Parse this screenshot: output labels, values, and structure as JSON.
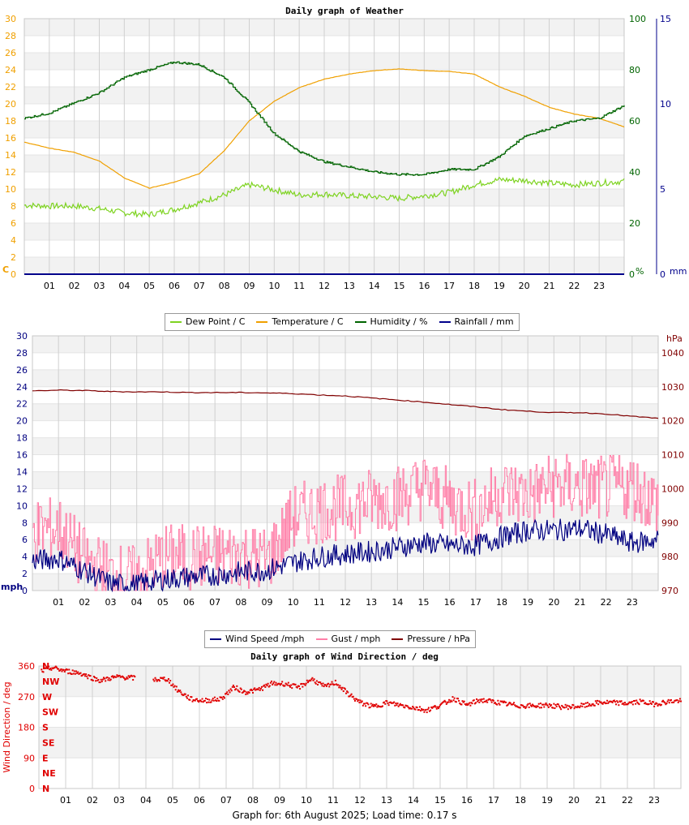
{
  "footer": {
    "text": "Graph for: 6th August 2025; Load time: 0.17 s"
  },
  "hour_labels": [
    "01",
    "02",
    "03",
    "04",
    "05",
    "06",
    "07",
    "08",
    "09",
    "10",
    "11",
    "12",
    "13",
    "14",
    "15",
    "16",
    "17",
    "18",
    "19",
    "20",
    "21",
    "22",
    "23"
  ],
  "colors": {
    "dewpoint": "#7ed321",
    "temperature": "#f0a000",
    "humidity": "#006400",
    "rainfall": "#00008b",
    "wind": "#000080",
    "gust": "#ff7fa8",
    "pressure": "#800000",
    "winddir": "#e00000",
    "grid_band": "#f2f2f2",
    "grid_line": "#d0d0d0"
  },
  "chart_data": [
    {
      "type": "line",
      "title": "Daily graph of Weather",
      "x_range": [
        0,
        24
      ],
      "y_axes": {
        "left": {
          "unit": "C",
          "range": [
            0,
            30
          ],
          "ticks": [
            "0",
            "2",
            "4",
            "6",
            "8",
            "10",
            "12",
            "14",
            "16",
            "18",
            "20",
            "22",
            "24",
            "26",
            "28",
            "30"
          ]
        },
        "right1": {
          "unit": "%",
          "range": [
            0,
            100
          ],
          "ticks": [
            "0",
            "20",
            "40",
            "60",
            "80",
            "100"
          ]
        },
        "right2": {
          "unit": "mm",
          "range": [
            0,
            15
          ],
          "ticks": [
            "0",
            "5",
            "10",
            "15"
          ]
        }
      },
      "series": [
        {
          "name": "Dew Point / C",
          "axis": "left",
          "x": [
            0,
            1,
            2,
            3,
            4,
            5,
            6,
            7,
            8,
            9,
            10,
            11,
            12,
            13,
            14,
            15,
            16,
            17,
            18,
            19,
            20,
            21,
            22,
            23,
            24
          ],
          "values": [
            8.1,
            8.0,
            8.0,
            7.7,
            7.2,
            7.0,
            7.6,
            8.4,
            9.3,
            10.5,
            9.9,
            9.3,
            9.4,
            9.2,
            9.1,
            8.9,
            9.2,
            9.6,
            10.5,
            11.1,
            11.0,
            10.7,
            10.5,
            10.7,
            10.9
          ]
        },
        {
          "name": "Temperature / C",
          "axis": "left",
          "x": [
            0,
            1,
            2,
            3,
            4,
            5,
            6,
            7,
            8,
            9,
            10,
            11,
            12,
            13,
            14,
            15,
            16,
            17,
            18,
            19,
            20,
            21,
            22,
            23,
            24
          ],
          "values": [
            15.5,
            14.8,
            14.3,
            13.3,
            11.3,
            10.1,
            10.8,
            11.8,
            14.5,
            18.0,
            20.3,
            21.9,
            22.9,
            23.5,
            23.9,
            24.1,
            23.9,
            23.8,
            23.5,
            22.0,
            20.9,
            19.6,
            18.8,
            18.3,
            17.3
          ]
        },
        {
          "name": "Humidity / %",
          "axis": "right1",
          "x": [
            0,
            1,
            2,
            3,
            4,
            5,
            6,
            7,
            8,
            9,
            10,
            11,
            12,
            13,
            14,
            15,
            16,
            17,
            18,
            19,
            20,
            21,
            22,
            23,
            24
          ],
          "values": [
            61,
            63,
            67,
            71,
            77,
            80,
            83,
            82,
            77,
            67,
            55,
            48,
            44,
            42,
            40,
            39,
            39,
            41,
            41,
            46,
            54,
            57,
            60,
            61,
            66
          ]
        },
        {
          "name": "Rainfall / mm",
          "axis": "right2",
          "x": [
            0,
            24
          ],
          "values": [
            0,
            0
          ]
        }
      ]
    },
    {
      "type": "line",
      "title": "",
      "x_range": [
        0,
        24
      ],
      "y_axes": {
        "left": {
          "unit": "mph",
          "range": [
            0,
            30
          ],
          "ticks": [
            "0",
            "2",
            "4",
            "6",
            "8",
            "10",
            "12",
            "14",
            "16",
            "18",
            "20",
            "22",
            "24",
            "26",
            "28",
            "30"
          ]
        },
        "right": {
          "unit": "hPa",
          "range": [
            970,
            1045
          ],
          "ticks": [
            "970",
            "980",
            "990",
            "1000",
            "1010",
            "1020",
            "1030",
            "1040"
          ]
        }
      },
      "series": [
        {
          "name": "Wind Speed /mph",
          "axis": "left",
          "x": [
            0,
            1,
            2,
            3,
            4,
            5,
            6,
            7,
            8,
            9,
            10,
            11,
            12,
            13,
            14,
            15,
            16,
            17,
            18,
            19,
            20,
            21,
            22,
            23,
            24
          ],
          "values": [
            3.5,
            3.8,
            2.3,
            0.8,
            0.7,
            1.3,
            1.6,
            1.8,
            2.2,
            2.4,
            3.3,
            4.0,
            4.3,
            4.6,
            5.1,
            5.6,
            5.3,
            5.3,
            6.3,
            7.1,
            7.1,
            7.3,
            6.6,
            5.6,
            6.0
          ]
        },
        {
          "name": "Gust / mph",
          "axis": "left",
          "x": [
            0,
            1,
            2,
            3,
            4,
            5,
            6,
            7,
            8,
            9,
            10,
            11,
            12,
            13,
            14,
            15,
            16,
            17,
            18,
            19,
            20,
            21,
            22,
            23,
            24
          ],
          "values": [
            7.0,
            7.2,
            3.5,
            1.8,
            1.4,
            4.0,
            3.9,
            4.0,
            4.3,
            3.6,
            8.6,
            9.5,
            9.8,
            10.6,
            11.0,
            12.3,
            10.4,
            9.3,
            11.8,
            11.2,
            12.4,
            12.1,
            12.0,
            12.3,
            10.2
          ]
        },
        {
          "name": "Pressure / hPa",
          "axis": "right",
          "x": [
            0,
            1,
            2,
            3,
            4,
            5,
            6,
            7,
            8,
            9,
            10,
            11,
            12,
            13,
            14,
            15,
            16,
            17,
            18,
            19,
            20,
            21,
            22,
            23,
            24
          ],
          "values": [
            1028.8,
            1029.0,
            1028.9,
            1028.6,
            1028.5,
            1028.5,
            1028.3,
            1028.3,
            1028.3,
            1028.2,
            1028.0,
            1027.6,
            1027.3,
            1026.7,
            1026.1,
            1025.5,
            1024.8,
            1024.1,
            1023.3,
            1022.8,
            1022.4,
            1022.4,
            1022.0,
            1021.3,
            1020.7
          ]
        }
      ]
    },
    {
      "type": "scatter",
      "title": "Daily graph of Wind Direction / deg",
      "ylabel": "Wind Direction / deg",
      "x_range": [
        0,
        24
      ],
      "ylim": [
        0,
        360
      ],
      "y_ticks": [
        "0",
        "90",
        "180",
        "270",
        "360"
      ],
      "compass_labels": [
        "N",
        "NE",
        "E",
        "SE",
        "S",
        "SW",
        "W",
        "NW",
        "N"
      ],
      "series": [
        {
          "name": "Wind Direction / deg",
          "x": [
            0.1,
            0.5,
            1,
            1.5,
            2,
            2.3,
            2.7,
            3,
            3.5,
            4.3,
            4.8,
            5.2,
            5.7,
            6.2,
            6.8,
            7.3,
            7.7,
            8.2,
            8.7,
            9.2,
            9.7,
            10.2,
            10.7,
            11.1,
            11.5,
            12,
            12.5,
            13,
            13.5,
            14,
            14.5,
            15,
            15.5,
            16,
            16.5,
            17,
            17.5,
            18,
            18.5,
            19,
            19.5,
            20,
            20.5,
            21,
            21.5,
            22,
            22.5,
            23,
            23.5,
            24
          ],
          "values": [
            345,
            355,
            345,
            340,
            325,
            317,
            325,
            328,
            325,
            320,
            322,
            288,
            262,
            258,
            263,
            298,
            283,
            290,
            308,
            308,
            296,
            322,
            298,
            312,
            282,
            253,
            240,
            252,
            245,
            238,
            230,
            244,
            265,
            245,
            260,
            255,
            248,
            243,
            243,
            245,
            240,
            240,
            245,
            253,
            252,
            250,
            255,
            248,
            255,
            258
          ]
        }
      ]
    }
  ],
  "legends": [
    {
      "items": [
        "Dew Point / C",
        "Temperature / C",
        "Humidity / %",
        "Rainfall / mm"
      ]
    },
    {
      "items": [
        "Wind Speed /mph",
        "Gust / mph",
        "Pressure / hPa"
      ]
    }
  ]
}
